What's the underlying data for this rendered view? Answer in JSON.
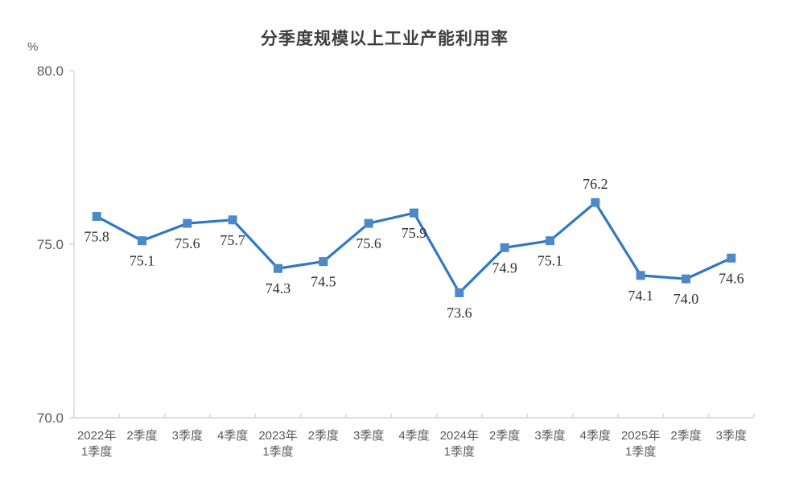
{
  "colors": {
    "line": "#2e78c5",
    "marker_fill": "#4d88c7",
    "axis": "#d6d6d6",
    "tick_text": "#595959",
    "title_text": "#3f3f3f",
    "data_label_text": "#2e2e2e",
    "background": "#ffffff"
  },
  "chart_data": {
    "type": "line",
    "title": "分季度规模以上工业产能利用率",
    "ylabel": "%",
    "xlabel": "",
    "ylim": [
      70.0,
      80.0
    ],
    "yticks": [
      70.0,
      75.0,
      80.0
    ],
    "ytick_labels": [
      "70.0",
      "75.0",
      "80.0"
    ],
    "grid": false,
    "legend": null,
    "marker": "square",
    "categories": [
      "2022年1季度",
      "2季度",
      "3季度",
      "4季度",
      "2023年1季度",
      "2季度",
      "3季度",
      "4季度",
      "2024年1季度",
      "2季度",
      "3季度",
      "4季度",
      "2025年1季度",
      "2季度",
      "3季度"
    ],
    "category_lines": [
      [
        "2022年",
        "1季度"
      ],
      [
        "2季度"
      ],
      [
        "3季度"
      ],
      [
        "4季度"
      ],
      [
        "2023年",
        "1季度"
      ],
      [
        "2季度"
      ],
      [
        "3季度"
      ],
      [
        "4季度"
      ],
      [
        "2024年",
        "1季度"
      ],
      [
        "2季度"
      ],
      [
        "3季度"
      ],
      [
        "4季度"
      ],
      [
        "2025年",
        "1季度"
      ],
      [
        "2季度"
      ],
      [
        "3季度"
      ]
    ],
    "values": [
      75.8,
      75.1,
      75.6,
      75.7,
      74.3,
      74.5,
      75.6,
      75.9,
      73.6,
      74.9,
      75.1,
      76.2,
      74.1,
      74.0,
      74.6
    ],
    "data_labels": [
      "75.8",
      "75.1",
      "75.6",
      "75.7",
      "74.3",
      "74.5",
      "75.6",
      "75.9",
      "73.6",
      "74.9",
      "75.1",
      "76.2",
      "74.1",
      "74.0",
      "74.6"
    ],
    "label_positions": [
      "below",
      "below",
      "below",
      "below",
      "below",
      "below",
      "below",
      "below",
      "below",
      "below",
      "below",
      "above",
      "below",
      "below",
      "below"
    ]
  }
}
